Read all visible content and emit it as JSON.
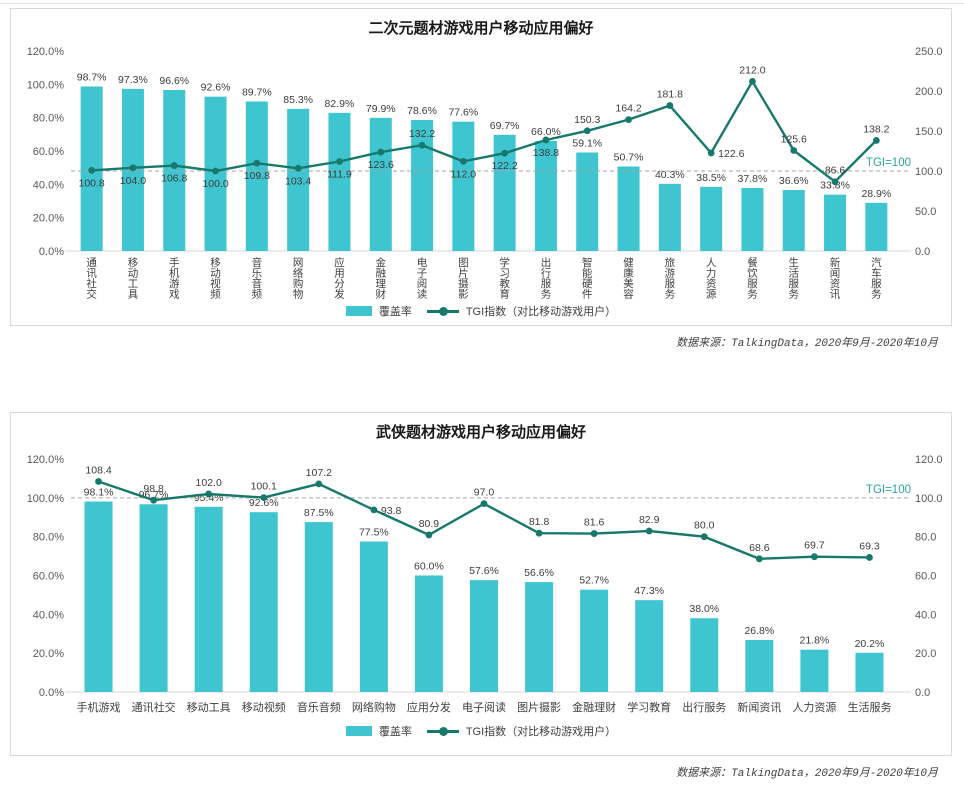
{
  "colors": {
    "bar": "#3ec5cf",
    "line": "#17796b",
    "dashed_reference": "#a6a6a6",
    "tgi_label": "#2aa49e",
    "axis_text": "#595959",
    "value_text": "#3d3d3d",
    "border": "#d9d9d9"
  },
  "legend": {
    "bar_label": "覆盖率",
    "line_label": "TGI指数（对比移动游戏用户）"
  },
  "chart_data": [
    {
      "type": "bar",
      "subtype": "bar+line combo",
      "title": "二次元题材游戏用户移动应用偏好",
      "categories": [
        "通讯社交",
        "移动工具",
        "手机游戏",
        "移动视频",
        "音乐音频",
        "网络购物",
        "应用分发",
        "金融理财",
        "电子阅读",
        "图片摄影",
        "学习教育",
        "出行服务",
        "智能硬件",
        "健康美容",
        "旅游服务",
        "人力资源",
        "餐饮服务",
        "生活服务",
        "新闻资讯",
        "汽车服务"
      ],
      "series": [
        {
          "name": "覆盖率",
          "type": "bar",
          "axis": "left",
          "unit": "%",
          "values": [
            98.7,
            97.3,
            96.6,
            92.6,
            89.7,
            85.3,
            82.9,
            79.9,
            78.6,
            77.6,
            69.7,
            66.0,
            59.1,
            50.7,
            40.3,
            38.5,
            37.8,
            36.6,
            33.8,
            28.9
          ]
        },
        {
          "name": "TGI指数（对比移动游戏用户）",
          "type": "line",
          "axis": "right",
          "values": [
            100.8,
            104.0,
            106.8,
            100.0,
            109.8,
            103.4,
            111.9,
            123.6,
            132.2,
            112.0,
            122.2,
            138.8,
            150.3,
            164.2,
            181.8,
            122.6,
            212.0,
            125.6,
            86.6,
            138.2
          ],
          "label_pos": [
            "below",
            "below",
            "below",
            "below",
            "below",
            "below",
            "below",
            "below",
            "above",
            "below",
            "below",
            "below",
            "above",
            "above",
            "above",
            "right",
            "above",
            "above",
            "above",
            "above"
          ]
        }
      ],
      "left_axis": {
        "min": 0,
        "max": 120,
        "step": 20,
        "suffix": "%",
        "ticks": [
          "0.0%",
          "20.0%",
          "40.0%",
          "60.0%",
          "80.0%",
          "100.0%",
          "120.0%"
        ]
      },
      "right_axis": {
        "min": 0,
        "max": 250,
        "step": 50,
        "suffix": "",
        "ticks": [
          "0.0",
          "50.0",
          "100.0",
          "150.0",
          "200.0",
          "250.0"
        ]
      },
      "reference_line": {
        "axis": "right",
        "value": 100,
        "label": "TGI=100"
      },
      "category_orientation": "vertical",
      "grid": "off",
      "legend_position": "bottom",
      "source": "数据来源：TalkingData，2020年9月-2020年10月"
    },
    {
      "type": "bar",
      "subtype": "bar+line combo",
      "title": "武侠题材游戏用户移动应用偏好",
      "categories": [
        "手机游戏",
        "通讯社交",
        "移动工具",
        "移动视频",
        "音乐音频",
        "网络购物",
        "应用分发",
        "电子阅读",
        "图片摄影",
        "金融理财",
        "学习教育",
        "出行服务",
        "新闻资讯",
        "人力资源",
        "生活服务"
      ],
      "series": [
        {
          "name": "覆盖率",
          "type": "bar",
          "axis": "left",
          "unit": "%",
          "values": [
            98.1,
            96.7,
            95.4,
            92.6,
            87.5,
            77.5,
            60.0,
            57.6,
            56.6,
            52.7,
            47.3,
            38.0,
            26.8,
            21.8,
            20.2
          ]
        },
        {
          "name": "TGI指数（对比移动游戏用户）",
          "type": "line",
          "axis": "right",
          "values": [
            108.4,
            98.8,
            102.0,
            100.1,
            107.2,
            93.8,
            80.9,
            97.0,
            81.8,
            81.6,
            82.9,
            80.0,
            68.6,
            69.7,
            69.3
          ],
          "label_pos": [
            "above",
            "above",
            "above",
            "above",
            "above",
            "right",
            "above",
            "above",
            "above",
            "above",
            "above",
            "above",
            "above",
            "above",
            "above"
          ]
        }
      ],
      "left_axis": {
        "min": 0,
        "max": 120,
        "step": 20,
        "suffix": "%",
        "ticks": [
          "0.0%",
          "20.0%",
          "40.0%",
          "60.0%",
          "80.0%",
          "100.0%",
          "120.0%"
        ]
      },
      "right_axis": {
        "min": 0,
        "max": 120,
        "step": 20,
        "suffix": "",
        "ticks": [
          "0.0",
          "20.0",
          "40.0",
          "60.0",
          "80.0",
          "100.0",
          "120.0"
        ]
      },
      "reference_line": {
        "axis": "right",
        "value": 100,
        "label": "TGI=100"
      },
      "category_orientation": "horizontal",
      "grid": "off",
      "legend_position": "bottom",
      "source": "数据来源：TalkingData，2020年9月-2020年10月"
    }
  ]
}
